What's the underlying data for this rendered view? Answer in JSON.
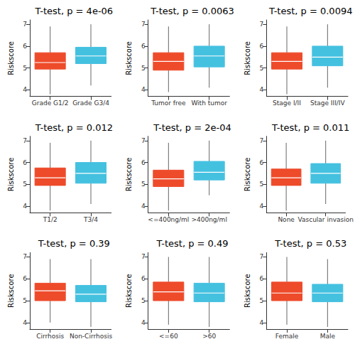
{
  "chart_data": [
    {
      "type": "boxplot",
      "title": "T-test, p = 4e-06",
      "y_label": "Riskscore",
      "categories": [
        "Grade G1/2",
        "Grade G3/4"
      ],
      "colors": [
        "#EE4B2B",
        "#45C1E0"
      ],
      "values": [
        [
          3.8,
          4.95,
          5.25,
          5.7,
          6.9
        ],
        [
          4.2,
          5.2,
          5.55,
          5.95,
          7.0
        ]
      ],
      "ylim": [
        3.7,
        7.2
      ],
      "yticks": [
        4,
        5,
        6,
        7
      ],
      "grid": false
    },
    {
      "type": "boxplot",
      "title": "T-test, p = 0.0063",
      "y_label": "Riskscore",
      "categories": [
        "Tumor free",
        "With tumor"
      ],
      "colors": [
        "#EE4B2B",
        "#45C1E0"
      ],
      "values": [
        [
          3.9,
          4.9,
          5.3,
          5.7,
          6.9
        ],
        [
          4.1,
          5.05,
          5.55,
          6.0,
          7.0
        ]
      ],
      "ylim": [
        3.7,
        7.2
      ],
      "yticks": [
        4,
        5,
        6,
        7
      ],
      "grid": false
    },
    {
      "type": "boxplot",
      "title": "T-test, p = 0.0094",
      "y_label": "Riskscore",
      "categories": [
        "Stage I/II",
        "Stage III/IV"
      ],
      "colors": [
        "#EE4B2B",
        "#45C1E0"
      ],
      "values": [
        [
          3.8,
          4.95,
          5.3,
          5.7,
          6.9
        ],
        [
          4.1,
          5.1,
          5.5,
          6.0,
          7.0
        ]
      ],
      "ylim": [
        3.7,
        7.2
      ],
      "yticks": [
        4,
        5,
        6,
        7
      ],
      "grid": false
    },
    {
      "type": "boxplot",
      "title": "T-test, p = 0.012",
      "y_label": "Riskscore",
      "categories": [
        "T1/2",
        "T3/4"
      ],
      "colors": [
        "#EE4B2B",
        "#45C1E0"
      ],
      "values": [
        [
          3.8,
          4.95,
          5.3,
          5.75,
          6.9
        ],
        [
          4.1,
          5.05,
          5.5,
          6.0,
          7.0
        ]
      ],
      "ylim": [
        3.7,
        7.2
      ],
      "yticks": [
        4,
        5,
        6,
        7
      ],
      "grid": false
    },
    {
      "type": "boxplot",
      "title": "T-test, p = 2e-04",
      "y_label": "Riskscore",
      "categories": [
        "<=400ng/ml",
        ">400ng/ml"
      ],
      "colors": [
        "#EE4B2B",
        "#45C1E0"
      ],
      "values": [
        [
          3.8,
          4.9,
          5.25,
          5.65,
          6.9
        ],
        [
          4.5,
          5.2,
          5.55,
          6.05,
          7.0
        ]
      ],
      "ylim": [
        3.7,
        7.2
      ],
      "yticks": [
        4,
        5,
        6,
        7
      ],
      "grid": false
    },
    {
      "type": "boxplot",
      "title": "T-test, p = 0.011",
      "y_label": "Riskscore",
      "categories": [
        "None",
        "Vascular invasion"
      ],
      "colors": [
        "#EE4B2B",
        "#45C1E0"
      ],
      "values": [
        [
          3.8,
          4.95,
          5.3,
          5.7,
          6.9
        ],
        [
          4.1,
          5.05,
          5.5,
          5.95,
          7.0
        ]
      ],
      "ylim": [
        3.7,
        7.2
      ],
      "yticks": [
        4,
        5,
        6,
        7
      ],
      "grid": false
    },
    {
      "type": "boxplot",
      "title": "T-test, p = 0.39",
      "y_label": "Riskscore",
      "categories": [
        "Cirrhosis",
        "Non-Cirrhosis"
      ],
      "colors": [
        "#EE4B2B",
        "#45C1E0"
      ],
      "values": [
        [
          4.0,
          5.0,
          5.45,
          5.8,
          6.9
        ],
        [
          3.8,
          4.95,
          5.3,
          5.7,
          6.9
        ]
      ],
      "ylim": [
        3.7,
        7.2
      ],
      "yticks": [
        4,
        5,
        6,
        7
      ],
      "grid": false
    },
    {
      "type": "boxplot",
      "title": "T-test, p = 0.49",
      "y_label": "Riskscore",
      "categories": [
        "<=60",
        ">60"
      ],
      "colors": [
        "#EE4B2B",
        "#45C1E0"
      ],
      "values": [
        [
          3.9,
          5.0,
          5.4,
          5.85,
          7.0
        ],
        [
          3.8,
          4.95,
          5.35,
          5.8,
          7.0
        ]
      ],
      "ylim": [
        3.7,
        7.2
      ],
      "yticks": [
        4,
        5,
        6,
        7
      ],
      "grid": false
    },
    {
      "type": "boxplot",
      "title": "T-test, p = 0.53",
      "y_label": "Riskscore",
      "categories": [
        "Female",
        "Male"
      ],
      "colors": [
        "#EE4B2B",
        "#45C1E0"
      ],
      "values": [
        [
          3.9,
          5.0,
          5.35,
          5.85,
          7.0
        ],
        [
          3.8,
          4.95,
          5.35,
          5.75,
          6.9
        ]
      ],
      "ylim": [
        3.7,
        7.2
      ],
      "yticks": [
        4,
        5,
        6,
        7
      ],
      "grid": false
    }
  ]
}
